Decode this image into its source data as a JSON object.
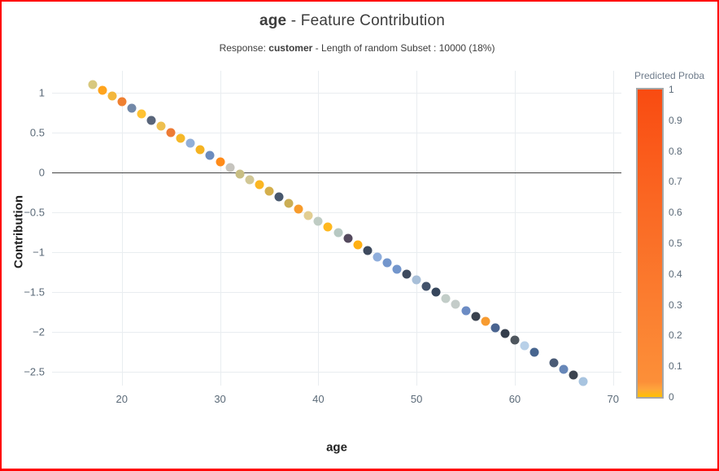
{
  "page": {
    "border_color": "#ff0000",
    "background": "#ffffff"
  },
  "chart_data": {
    "type": "scatter",
    "title": {
      "feature": "age",
      "rest": " - Feature Contribution"
    },
    "subtitle": {
      "prefix": "Response: ",
      "response": "customer",
      "suffix": " - Length of random Subset : 10000 (18%)"
    },
    "xlabel": "age",
    "ylabel": "Contribution",
    "xlim": [
      12.9,
      70.85
    ],
    "ylim": [
      -2.67,
      1.27
    ],
    "x_ticks": [
      "20",
      "30",
      "40",
      "50",
      "60",
      "70"
    ],
    "x_tick_values": [
      20,
      30,
      40,
      50,
      60,
      70
    ],
    "y_ticks": [
      "1",
      "0.5",
      "0",
      "−0.5",
      "−1",
      "−1.5",
      "−2",
      "−2.5"
    ],
    "y_tick_values": [
      1,
      0.5,
      0,
      -0.5,
      -1,
      -1.5,
      -2,
      -2.5
    ],
    "grid": true,
    "zero_line": true,
    "legend_position": "right",
    "points": [
      {
        "x": 17,
        "y": 1.1,
        "color": "#D8C87E"
      },
      {
        "x": 18,
        "y": 1.03,
        "color": "#FFA41D"
      },
      {
        "x": 19,
        "y": 0.95,
        "color": "#F3B73C"
      },
      {
        "x": 20,
        "y": 0.88,
        "color": "#EF8032"
      },
      {
        "x": 21,
        "y": 0.8,
        "color": "#7288A8"
      },
      {
        "x": 22,
        "y": 0.73,
        "color": "#FFC233"
      },
      {
        "x": 23,
        "y": 0.65,
        "color": "#59657A"
      },
      {
        "x": 24,
        "y": 0.58,
        "color": "#EEC050"
      },
      {
        "x": 25,
        "y": 0.5,
        "color": "#ED7B35"
      },
      {
        "x": 26,
        "y": 0.43,
        "color": "#F5B829"
      },
      {
        "x": 27,
        "y": 0.36,
        "color": "#92AFD8"
      },
      {
        "x": 28,
        "y": 0.28,
        "color": "#F5B322"
      },
      {
        "x": 29,
        "y": 0.21,
        "color": "#6C8CBF"
      },
      {
        "x": 30,
        "y": 0.13,
        "color": "#FF8B1A"
      },
      {
        "x": 31,
        "y": 0.06,
        "color": "#C6C4BE"
      },
      {
        "x": 32,
        "y": -0.02,
        "color": "#C8BE82"
      },
      {
        "x": 33,
        "y": -0.09,
        "color": "#D1C795"
      },
      {
        "x": 34,
        "y": -0.16,
        "color": "#FBB622"
      },
      {
        "x": 35,
        "y": -0.24,
        "color": "#D4AF4C"
      },
      {
        "x": 36,
        "y": -0.31,
        "color": "#48586E"
      },
      {
        "x": 37,
        "y": -0.39,
        "color": "#CBAE55"
      },
      {
        "x": 38,
        "y": -0.46,
        "color": "#F79B2C"
      },
      {
        "x": 39,
        "y": -0.54,
        "color": "#E2CE93"
      },
      {
        "x": 40,
        "y": -0.61,
        "color": "#BFCCC3"
      },
      {
        "x": 41,
        "y": -0.68,
        "color": "#FFB81E"
      },
      {
        "x": 42,
        "y": -0.76,
        "color": "#B7C8C2"
      },
      {
        "x": 43,
        "y": -0.83,
        "color": "#554A5E"
      },
      {
        "x": 44,
        "y": -0.91,
        "color": "#FFB014"
      },
      {
        "x": 45,
        "y": -0.98,
        "color": "#3E4A5E"
      },
      {
        "x": 46,
        "y": -1.06,
        "color": "#8FAEDC"
      },
      {
        "x": 47,
        "y": -1.13,
        "color": "#7396CC"
      },
      {
        "x": 48,
        "y": -1.21,
        "color": "#7396CC"
      },
      {
        "x": 49,
        "y": -1.28,
        "color": "#3E4A5E"
      },
      {
        "x": 50,
        "y": -1.35,
        "color": "#A8BFD8"
      },
      {
        "x": 51,
        "y": -1.43,
        "color": "#43536B"
      },
      {
        "x": 52,
        "y": -1.5,
        "color": "#36465C"
      },
      {
        "x": 53,
        "y": -1.58,
        "color": "#C2CDC8"
      },
      {
        "x": 54,
        "y": -1.65,
        "color": "#C4CCC9"
      },
      {
        "x": 55,
        "y": -1.73,
        "color": "#6C8CC4"
      },
      {
        "x": 56,
        "y": -1.8,
        "color": "#3A424E"
      },
      {
        "x": 57,
        "y": -1.87,
        "color": "#F79B30"
      },
      {
        "x": 58,
        "y": -1.95,
        "color": "#4A6490"
      },
      {
        "x": 59,
        "y": -2.02,
        "color": "#343E4C"
      },
      {
        "x": 60,
        "y": -2.1,
        "color": "#4E565E"
      },
      {
        "x": 61,
        "y": -2.17,
        "color": "#B8D0E8"
      },
      {
        "x": 62,
        "y": -2.25,
        "color": "#47658F"
      },
      {
        "x": 64,
        "y": -2.39,
        "color": "#4A5B76"
      },
      {
        "x": 65,
        "y": -2.47,
        "color": "#6787B8"
      },
      {
        "x": 66,
        "y": -2.54,
        "color": "#3C4450"
      },
      {
        "x": 67,
        "y": -2.62,
        "color": "#A8C4E0"
      }
    ],
    "colorbar": {
      "title": "Predicted Proba",
      "ticks": [
        "1",
        "0.9",
        "0.8",
        "0.7",
        "0.6",
        "0.5",
        "0.4",
        "0.3",
        "0.2",
        "0.1",
        "0"
      ],
      "gradient_stops": [
        {
          "color": "#F94B11",
          "pos": 0
        },
        {
          "color": "#FA6622",
          "pos": 35
        },
        {
          "color": "#FB7E30",
          "pos": 70
        },
        {
          "color": "#FC8F38",
          "pos": 95
        },
        {
          "color": "#FEA53C",
          "pos": 97.5
        },
        {
          "color": "#FFC103",
          "pos": 100
        }
      ]
    }
  }
}
